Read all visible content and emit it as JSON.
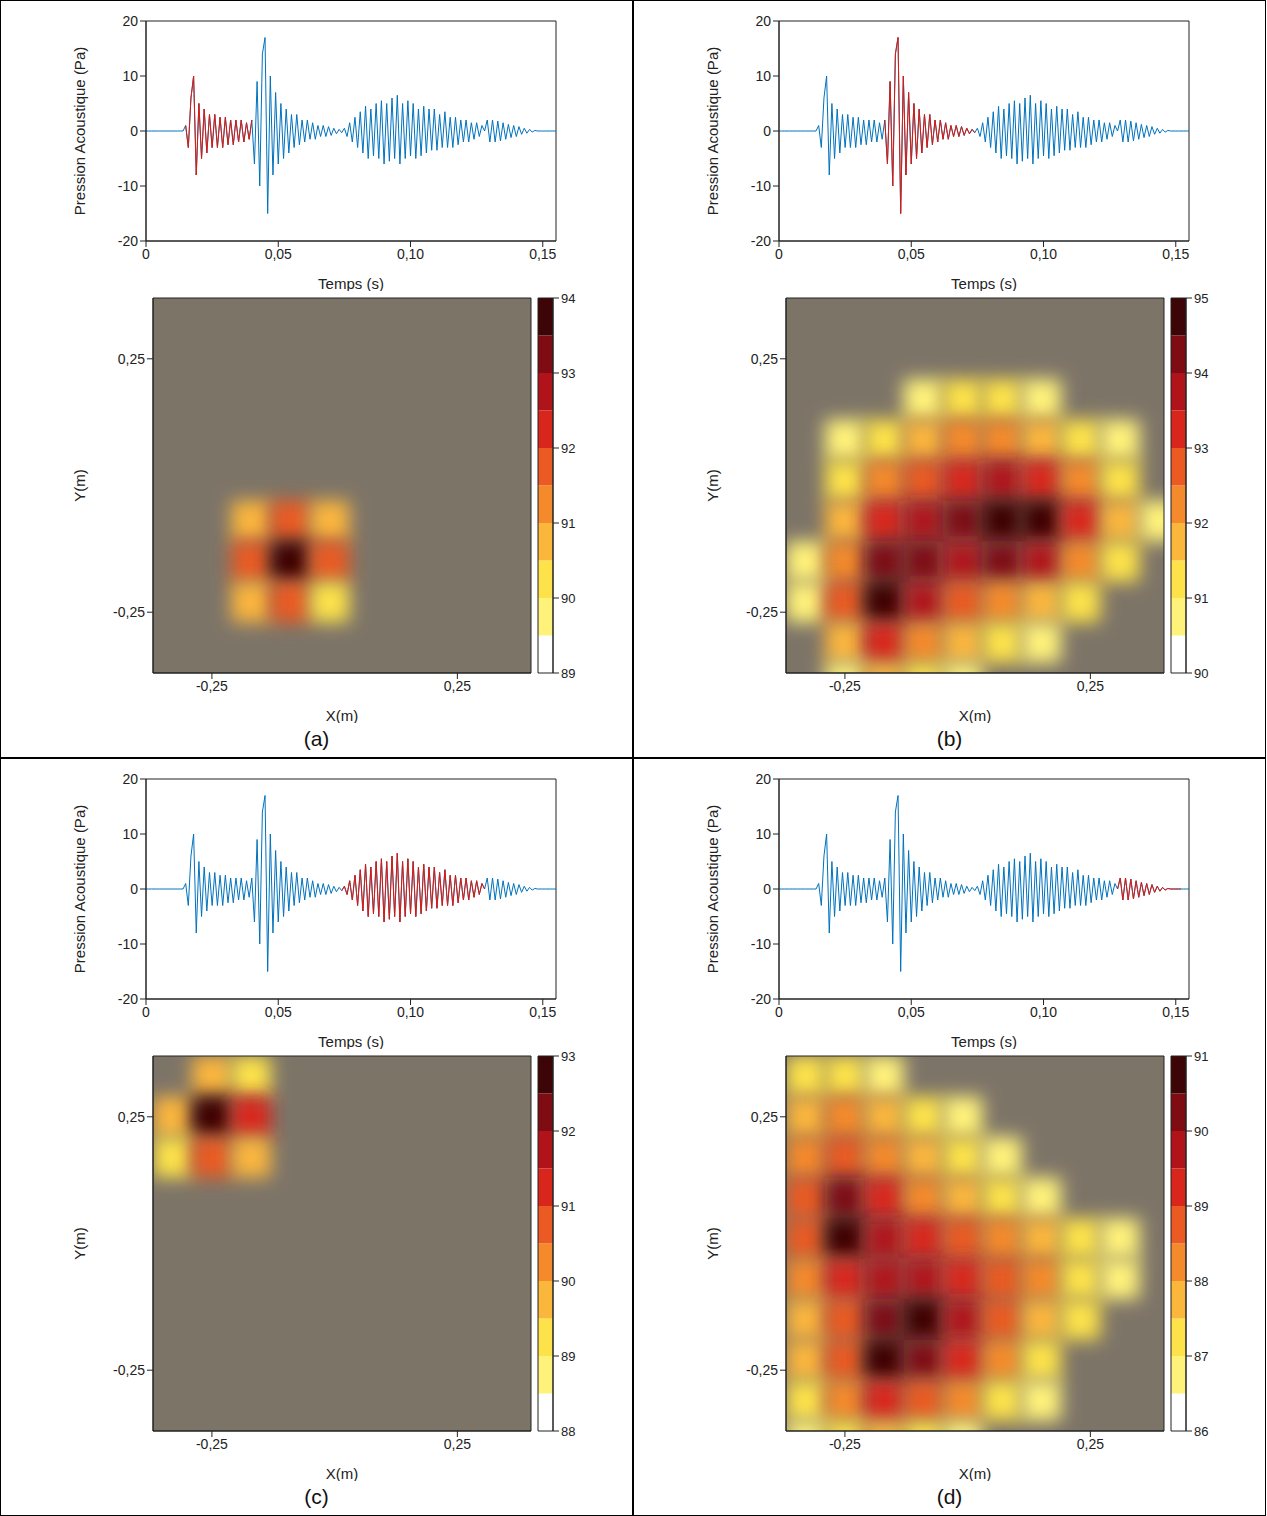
{
  "signal": {
    "color": "#0072bd",
    "highlight_color": "#e3170a",
    "x": [
      0,
      0.001,
      0.002,
      0.003,
      0.004,
      0.005,
      0.006,
      0.007,
      0.008,
      0.009,
      0.01,
      0.011,
      0.012,
      0.013,
      0.014,
      0.015,
      0.016,
      0.017,
      0.018,
      0.019,
      0.02,
      0.021,
      0.022,
      0.023,
      0.024,
      0.025,
      0.026,
      0.027,
      0.028,
      0.029,
      0.03,
      0.031,
      0.032,
      0.033,
      0.034,
      0.035,
      0.036,
      0.037,
      0.038,
      0.039,
      0.04,
      0.041,
      0.042,
      0.043,
      0.044,
      0.045,
      0.046,
      0.047,
      0.048,
      0.049,
      0.05,
      0.051,
      0.052,
      0.053,
      0.054,
      0.055,
      0.056,
      0.057,
      0.058,
      0.059,
      0.06,
      0.061,
      0.062,
      0.063,
      0.064,
      0.065,
      0.066,
      0.067,
      0.068,
      0.069,
      0.07,
      0.071,
      0.072,
      0.073,
      0.074,
      0.075,
      0.076,
      0.077,
      0.078,
      0.079,
      0.08,
      0.081,
      0.082,
      0.083,
      0.084,
      0.085,
      0.086,
      0.087,
      0.088,
      0.089,
      0.09,
      0.091,
      0.092,
      0.093,
      0.094,
      0.095,
      0.096,
      0.097,
      0.098,
      0.099,
      0.1,
      0.101,
      0.102,
      0.103,
      0.104,
      0.105,
      0.106,
      0.107,
      0.108,
      0.109,
      0.11,
      0.111,
      0.112,
      0.113,
      0.114,
      0.115,
      0.116,
      0.117,
      0.118,
      0.119,
      0.12,
      0.121,
      0.122,
      0.123,
      0.124,
      0.125,
      0.126,
      0.127,
      0.128,
      0.129,
      0.13,
      0.131,
      0.132,
      0.133,
      0.134,
      0.135,
      0.136,
      0.137,
      0.138,
      0.139,
      0.14,
      0.141,
      0.142,
      0.143,
      0.144,
      0.145,
      0.146,
      0.147,
      0.148,
      0.149,
      0.15,
      0.151,
      0.152,
      0.153,
      0.154,
      0.155
    ],
    "values": [
      0,
      0,
      0,
      0,
      0,
      0,
      0,
      0,
      0,
      0,
      0,
      0,
      0,
      0,
      0,
      1,
      -3,
      6,
      10,
      -8,
      5,
      -5,
      4,
      -4,
      3,
      -3,
      3,
      -3,
      2.5,
      -3,
      2.5,
      -2.5,
      2,
      -2.5,
      2,
      -2,
      2,
      -2,
      1.5,
      -1.5,
      2,
      -6,
      9,
      -10,
      14,
      17,
      -15,
      10,
      -8,
      7,
      -6,
      5,
      -5,
      4,
      -4,
      3,
      -3,
      3,
      -2.5,
      2,
      -2,
      2,
      -1.5,
      1.5,
      -1.5,
      1,
      -1,
      1,
      -1,
      0.8,
      -0.8,
      0.5,
      -0.5,
      0.3,
      -0.3,
      0.5,
      -1,
      1.5,
      -2,
      2.5,
      -3,
      3.5,
      -4,
      4.5,
      -5,
      4,
      -4.5,
      5,
      -5,
      5.5,
      -6,
      5,
      -5.5,
      6,
      -5,
      6.5,
      -6,
      5,
      -5,
      5.5,
      -4.5,
      5,
      -5,
      4,
      -4.5,
      4.5,
      -4,
      4,
      -3.5,
      4,
      -3.5,
      3,
      -3,
      3.5,
      -3,
      2.5,
      -3,
      2.5,
      -2.5,
      2,
      -2,
      2,
      -2,
      1.5,
      -1.5,
      1.5,
      -1,
      1,
      0,
      2,
      -2,
      2,
      -2,
      1.8,
      -1.8,
      1.5,
      -1.5,
      1.2,
      -1.2,
      1,
      -1,
      0.8,
      -0.6,
      0.5,
      -0.4,
      0.3,
      -0.2,
      0.1,
      0,
      0,
      0,
      0,
      0,
      0,
      0,
      0
    ]
  },
  "chart_data": [
    {
      "label": "(a)",
      "waveform": {
        "type": "line",
        "x_label": "Temps (s)",
        "y_label": "Pression Acoustique (Pa)",
        "xlim": [
          0,
          0.155
        ],
        "xticks": [
          0,
          {
            "value": 0.05,
            "label": "0,05"
          },
          {
            "value": 0.1,
            "label": "0,10"
          },
          {
            "value": 0.15,
            "label": "0,15"
          }
        ],
        "ylim": [
          -20,
          20
        ],
        "yticks": [
          -20,
          -10,
          0,
          10,
          20
        ],
        "highlight": [
          0.015,
          0.04
        ]
      },
      "map": {
        "type": "heatmap",
        "x_label": "X(m)",
        "y_label": "Y(m)",
        "xlim": [
          -0.37,
          0.4
        ],
        "ylim": [
          -0.37,
          0.37
        ],
        "xticks": [
          {
            "value": -0.25,
            "label": "-0,25"
          },
          {
            "value": 0.25,
            "label": "0,25"
          }
        ],
        "yticks": [
          {
            "value": -0.25,
            "label": "-0,25"
          },
          {
            "value": 0.25,
            "label": "0,25"
          }
        ],
        "x": [
          -0.33,
          -0.25,
          -0.17,
          -0.09,
          -0.01,
          0.07,
          0.15,
          0.23,
          0.31,
          0.39
        ],
        "y": [
          0.33,
          0.25,
          0.17,
          0.09,
          0.01,
          -0.07,
          -0.15,
          -0.23,
          -0.31,
          -0.39
        ],
        "cells": [
          [
            null,
            null,
            null,
            null,
            null,
            null,
            null,
            null,
            null,
            null
          ],
          [
            null,
            null,
            null,
            null,
            null,
            null,
            null,
            null,
            null,
            null
          ],
          [
            null,
            null,
            null,
            null,
            null,
            null,
            null,
            null,
            null,
            null
          ],
          [
            null,
            null,
            null,
            null,
            null,
            null,
            null,
            null,
            null,
            null
          ],
          [
            null,
            null,
            null,
            null,
            null,
            null,
            null,
            null,
            null,
            null
          ],
          [
            null,
            null,
            90.5,
            91.5,
            90.5,
            null,
            null,
            null,
            null,
            null
          ],
          [
            null,
            null,
            91.5,
            94,
            91.5,
            null,
            null,
            null,
            null,
            null
          ],
          [
            null,
            null,
            90.5,
            91.5,
            90,
            null,
            null,
            null,
            null,
            null
          ],
          [
            null,
            null,
            null,
            null,
            null,
            null,
            null,
            null,
            null,
            null
          ],
          [
            null,
            null,
            null,
            null,
            null,
            null,
            null,
            null,
            null,
            null
          ]
        ],
        "colorbar_range": [
          89,
          94
        ],
        "colorbar_ticks": [
          89,
          90,
          91,
          92,
          93,
          94
        ]
      }
    },
    {
      "label": "(b)",
      "waveform": {
        "type": "line",
        "x_label": "Temps (s)",
        "y_label": "Pression Acoustique (Pa)",
        "xlim": [
          0,
          0.155
        ],
        "xticks": [
          0,
          {
            "value": 0.05,
            "label": "0,05"
          },
          {
            "value": 0.1,
            "label": "0,10"
          },
          {
            "value": 0.15,
            "label": "0,15"
          }
        ],
        "ylim": [
          -20,
          20
        ],
        "yticks": [
          -20,
          -10,
          0,
          10,
          20
        ],
        "highlight": [
          0.04,
          0.074
        ]
      },
      "map": {
        "type": "heatmap",
        "x_label": "X(m)",
        "y_label": "Y(m)",
        "xlim": [
          -0.37,
          0.4
        ],
        "ylim": [
          -0.37,
          0.37
        ],
        "xticks": [
          {
            "value": -0.25,
            "label": "-0,25"
          },
          {
            "value": 0.25,
            "label": "0,25"
          }
        ],
        "yticks": [
          {
            "value": -0.25,
            "label": "-0,25"
          },
          {
            "value": 0.25,
            "label": "0,25"
          }
        ],
        "x": [
          -0.33,
          -0.25,
          -0.17,
          -0.09,
          -0.01,
          0.07,
          0.15,
          0.23,
          0.31,
          0.39
        ],
        "y": [
          0.33,
          0.25,
          0.17,
          0.09,
          0.01,
          -0.07,
          -0.15,
          -0.23,
          -0.31,
          -0.39
        ],
        "cells": [
          [
            null,
            null,
            null,
            null,
            null,
            null,
            null,
            null,
            null,
            null
          ],
          [
            null,
            null,
            null,
            null,
            null,
            null,
            null,
            null,
            null,
            null
          ],
          [
            null,
            null,
            null,
            90.5,
            91,
            91,
            90.5,
            null,
            null,
            null
          ],
          [
            null,
            90.5,
            91,
            91.5,
            92,
            92,
            91.5,
            91,
            90.5,
            null
          ],
          [
            null,
            91,
            92,
            92.5,
            93,
            93.5,
            93,
            92,
            91,
            null
          ],
          [
            null,
            91.5,
            93,
            93.5,
            94,
            94.5,
            94.5,
            93,
            91.5,
            90.5
          ],
          [
            90.5,
            92,
            94,
            94,
            93.5,
            94,
            93.5,
            92,
            91,
            null
          ],
          [
            90.5,
            92.5,
            94.5,
            93.5,
            92.5,
            92,
            91.5,
            91,
            null,
            null
          ],
          [
            null,
            91.5,
            93,
            92,
            91.5,
            91,
            90.5,
            null,
            null,
            null
          ],
          [
            null,
            90.5,
            91.5,
            91,
            90.5,
            null,
            null,
            null,
            null,
            null
          ]
        ],
        "colorbar_range": [
          90,
          95
        ],
        "colorbar_ticks": [
          90,
          91,
          92,
          93,
          94,
          95
        ]
      }
    },
    {
      "label": "(c)",
      "waveform": {
        "type": "line",
        "x_label": "Temps (s)",
        "y_label": "Pression Acoustique (Pa)",
        "xlim": [
          0,
          0.155
        ],
        "xticks": [
          0,
          {
            "value": 0.05,
            "label": "0,05"
          },
          {
            "value": 0.1,
            "label": "0,10"
          },
          {
            "value": 0.15,
            "label": "0,15"
          }
        ],
        "ylim": [
          -20,
          20
        ],
        "yticks": [
          -20,
          -10,
          0,
          10,
          20
        ],
        "highlight": [
          0.074,
          0.128
        ]
      },
      "map": {
        "type": "heatmap",
        "x_label": "X(m)",
        "y_label": "Y(m)",
        "xlim": [
          -0.37,
          0.4
        ],
        "ylim": [
          -0.37,
          0.37
        ],
        "xticks": [
          {
            "value": -0.25,
            "label": "-0,25"
          },
          {
            "value": 0.25,
            "label": "0,25"
          }
        ],
        "yticks": [
          {
            "value": -0.25,
            "label": "-0,25"
          },
          {
            "value": 0.25,
            "label": "0,25"
          }
        ],
        "x": [
          -0.33,
          -0.25,
          -0.17,
          -0.09,
          -0.01,
          0.07,
          0.15,
          0.23,
          0.31,
          0.39
        ],
        "y": [
          0.33,
          0.25,
          0.17,
          0.09,
          0.01,
          -0.07,
          -0.15,
          -0.23,
          -0.31,
          -0.39
        ],
        "cells": [
          [
            null,
            89.5,
            89,
            null,
            null,
            null,
            null,
            null,
            null,
            null
          ],
          [
            89.5,
            93,
            91,
            null,
            null,
            null,
            null,
            null,
            null,
            null
          ],
          [
            89,
            90.5,
            89.5,
            null,
            null,
            null,
            null,
            null,
            null,
            null
          ],
          [
            null,
            null,
            null,
            null,
            null,
            null,
            null,
            null,
            null,
            null
          ],
          [
            null,
            null,
            null,
            null,
            null,
            null,
            null,
            null,
            null,
            null
          ],
          [
            null,
            null,
            null,
            null,
            null,
            null,
            null,
            null,
            null,
            null
          ],
          [
            null,
            null,
            null,
            null,
            null,
            null,
            null,
            null,
            null,
            null
          ],
          [
            null,
            null,
            null,
            null,
            null,
            null,
            null,
            null,
            null,
            null
          ],
          [
            null,
            null,
            null,
            null,
            null,
            null,
            null,
            null,
            null,
            null
          ],
          [
            null,
            null,
            null,
            null,
            null,
            null,
            null,
            null,
            null,
            null
          ]
        ],
        "colorbar_range": [
          88,
          93
        ],
        "colorbar_ticks": [
          88,
          89,
          90,
          91,
          92,
          93
        ]
      }
    },
    {
      "label": "(d)",
      "waveform": {
        "type": "line",
        "x_label": "Temps (s)",
        "y_label": "Pression Acoustique (Pa)",
        "xlim": [
          0,
          0.155
        ],
        "xticks": [
          0,
          {
            "value": 0.05,
            "label": "0,05"
          },
          {
            "value": 0.1,
            "label": "0,10"
          },
          {
            "value": 0.15,
            "label": "0,15"
          }
        ],
        "ylim": [
          -20,
          20
        ],
        "yticks": [
          -20,
          -10,
          0,
          10,
          20
        ],
        "highlight": [
          0.128,
          0.152
        ]
      },
      "map": {
        "type": "heatmap",
        "x_label": "X(m)",
        "y_label": "Y(m)",
        "xlim": [
          -0.37,
          0.4
        ],
        "ylim": [
          -0.37,
          0.37
        ],
        "xticks": [
          {
            "value": -0.25,
            "label": "-0,25"
          },
          {
            "value": 0.25,
            "label": "0,25"
          }
        ],
        "yticks": [
          {
            "value": -0.25,
            "label": "-0,25"
          },
          {
            "value": 0.25,
            "label": "0,25"
          }
        ],
        "x": [
          -0.33,
          -0.25,
          -0.17,
          -0.09,
          -0.01,
          0.07,
          0.15,
          0.23,
          0.31,
          0.39
        ],
        "y": [
          0.33,
          0.25,
          0.17,
          0.09,
          0.01,
          -0.07,
          -0.15,
          -0.23,
          -0.31,
          -0.39
        ],
        "cells": [
          [
            87,
            87,
            86.5,
            null,
            null,
            null,
            null,
            null,
            null,
            null
          ],
          [
            87.5,
            88,
            87.5,
            87,
            86.5,
            null,
            null,
            null,
            null,
            null
          ],
          [
            88,
            88.5,
            88,
            87.5,
            87,
            86.5,
            null,
            null,
            null,
            null
          ],
          [
            88.5,
            90,
            89,
            88,
            87.5,
            87,
            86.5,
            null,
            null,
            null
          ],
          [
            88.5,
            90.5,
            89.5,
            89,
            88.5,
            88,
            87.5,
            87,
            86.5,
            null
          ],
          [
            88,
            89,
            89.5,
            89.5,
            89,
            88.5,
            88,
            87,
            86.5,
            null
          ],
          [
            87.5,
            88.5,
            90,
            90.5,
            89.5,
            88.5,
            87.5,
            87,
            null,
            null
          ],
          [
            87.5,
            88.5,
            90.5,
            90,
            89,
            88,
            87,
            null,
            null,
            null
          ],
          [
            87,
            88,
            89,
            88.5,
            88,
            87,
            86.5,
            null,
            null,
            null
          ],
          [
            86.5,
            87,
            87.5,
            87,
            86.5,
            null,
            null,
            null,
            null,
            null
          ]
        ],
        "colorbar_range": [
          86,
          91
        ],
        "colorbar_ticks": [
          86,
          87,
          88,
          89,
          90,
          91
        ]
      }
    }
  ]
}
